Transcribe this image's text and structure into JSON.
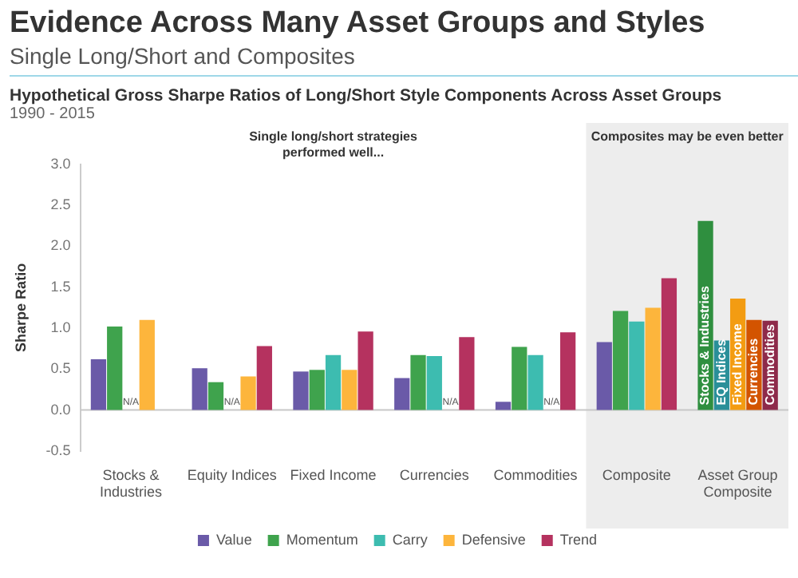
{
  "chart_data": {
    "type": "bar",
    "title": "Evidence Across Many Asset Groups and Styles",
    "subtitle": "Single Long/Short and Composites",
    "ylabel": "Sharpe Ratio",
    "annotations": [
      "Hypothetical Gross Sharpe Ratios of Long/Short Style Components Across Asset Groups",
      "1990 - 2015",
      "Single long/short strategies performed well...",
      "Composites may be even better"
    ],
    "categories": [
      "Stocks & Industries",
      "Equity Indices",
      "Fixed Income",
      "Currencies",
      "Commodities",
      "Composite",
      "Asset Group Composite"
    ],
    "series": [
      {
        "name": "Value",
        "color": "#6a5aa8",
        "values": [
          0.62,
          0.51,
          0.47,
          0.39,
          0.1,
          0.83,
          null
        ]
      },
      {
        "name": "Momentum",
        "color": "#3fa34d",
        "values": [
          1.02,
          0.34,
          0.49,
          0.67,
          0.77,
          1.21,
          null
        ]
      },
      {
        "name": "Carry",
        "color": "#3dbcb0",
        "values": [
          null,
          null,
          0.67,
          0.66,
          0.67,
          1.08,
          null
        ],
        "value_labels": [
          "N/A",
          "N/A",
          null,
          null,
          null,
          null,
          null
        ]
      },
      {
        "name": "Defensive",
        "color": "#fdb53c",
        "values": [
          1.1,
          0.41,
          0.49,
          null,
          null,
          1.25,
          null
        ],
        "value_labels": [
          null,
          null,
          null,
          "N/A",
          "N/A",
          null,
          null
        ]
      },
      {
        "name": "Trend",
        "color": "#b5325f",
        "values": [
          null,
          0.78,
          0.96,
          0.89,
          0.95,
          1.61,
          null
        ]
      },
      {
        "name": "Stocks & Industries",
        "color": "#2f8f3f",
        "values": [
          null,
          null,
          null,
          null,
          null,
          null,
          2.31
        ]
      },
      {
        "name": "EQ Indices",
        "color": "#2a8f99",
        "values": [
          null,
          null,
          null,
          null,
          null,
          null,
          0.85
        ]
      },
      {
        "name": "Fixed Income",
        "color": "#f39c12",
        "values": [
          null,
          null,
          null,
          null,
          null,
          null,
          1.36
        ]
      },
      {
        "name": "Currencies",
        "color": "#d35400",
        "values": [
          null,
          null,
          null,
          null,
          null,
          null,
          1.1
        ]
      },
      {
        "name": "Commodities",
        "color": "#8e2a4a",
        "values": [
          null,
          null,
          null,
          null,
          null,
          null,
          1.09
        ]
      }
    ],
    "bands": [
      {
        "axis": "x",
        "from": "Composite",
        "to": "Asset Group Composite",
        "color": "#ededed"
      }
    ],
    "ref_lines": [
      {
        "axis": "y",
        "value": 0,
        "color": "#c8c8c8"
      }
    ],
    "ylim": [
      -0.5,
      3.0
    ],
    "yticks": [
      -0.5,
      {
        "value": 0,
        "label": "0.0"
      },
      0.5,
      {
        "value": 1,
        "label": "1.0"
      },
      1.5,
      {
        "value": 2,
        "label": "2.0"
      },
      2.5,
      {
        "value": 3,
        "label": "3.0"
      }
    ],
    "grid": false,
    "legend": "bottom"
  }
}
